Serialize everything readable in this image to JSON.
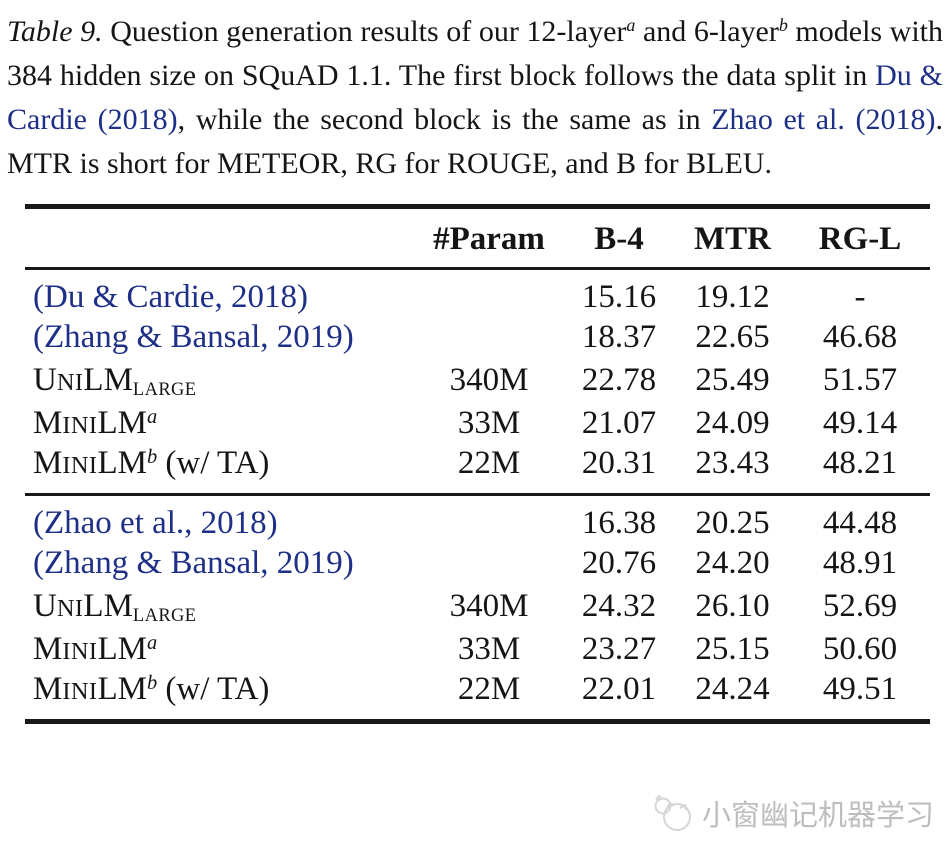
{
  "colors": {
    "text": "#151515",
    "link": "#1e2f87",
    "rule": "#191919",
    "watermark": "#bdbdbd",
    "background": "#ffffff"
  },
  "caption": {
    "segments": [
      {
        "t": "Table 9.",
        "s": "i"
      },
      {
        "t": "  Question generation results of our 12-layer"
      },
      {
        "t": "a",
        "s": "supi"
      },
      {
        "t": " and 6-layer"
      },
      {
        "t": "b",
        "s": "supi"
      },
      {
        "t": " models with 384 hidden size on SQuAD 1.1.  The first block follows the data split in "
      },
      {
        "t": "Du & Cardie (2018)",
        "s": "link"
      },
      {
        "t": ", while the second block is the same as in "
      },
      {
        "t": "Zhao et al. (2018)",
        "s": "link"
      },
      {
        "t": ".  MTR is short for METEOR, RG for ROUGE, and B for BLEU."
      }
    ]
  },
  "table": {
    "headers": [
      "",
      "#Param",
      "B-4",
      "MTR",
      "RG-L"
    ],
    "blocks": [
      {
        "rows": [
          {
            "label": [
              {
                "t": "(Du & Cardie, 2018)",
                "s": "cite"
              }
            ],
            "param": "",
            "b4": "15.16",
            "mtr": "19.12",
            "rgl": "-"
          },
          {
            "label": [
              {
                "t": "(Zhang & Bansal, 2019)",
                "s": "cite"
              }
            ],
            "param": "",
            "b4": "18.37",
            "mtr": "22.65",
            "rgl": "46.68"
          },
          {
            "label": [
              {
                "t": "U"
              },
              {
                "t": "NI",
                "s": "sc"
              },
              {
                "t": "LM"
              },
              {
                "t": "LARGE",
                "s": "sub"
              }
            ],
            "param": "340M",
            "b4": "22.78",
            "mtr": "25.49",
            "rgl": "51.57"
          },
          {
            "label": [
              {
                "t": "M"
              },
              {
                "t": "INI",
                "s": "sc"
              },
              {
                "t": "LM"
              },
              {
                "t": "a",
                "s": "sup"
              }
            ],
            "param": "33M",
            "b4": "21.07",
            "mtr": "24.09",
            "rgl": "49.14"
          },
          {
            "label": [
              {
                "t": "M"
              },
              {
                "t": "INI",
                "s": "sc"
              },
              {
                "t": "LM"
              },
              {
                "t": "b",
                "s": "sup"
              },
              {
                "t": " (w/ TA)"
              }
            ],
            "param": "22M",
            "b4": "20.31",
            "mtr": "23.43",
            "rgl": "48.21"
          }
        ]
      },
      {
        "rows": [
          {
            "label": [
              {
                "t": "(Zhao et al., 2018)",
                "s": "cite"
              }
            ],
            "param": "",
            "b4": "16.38",
            "mtr": "20.25",
            "rgl": "44.48"
          },
          {
            "label": [
              {
                "t": "(Zhang & Bansal, 2019)",
                "s": "cite"
              }
            ],
            "param": "",
            "b4": "20.76",
            "mtr": "24.20",
            "rgl": "48.91"
          },
          {
            "label": [
              {
                "t": "U"
              },
              {
                "t": "NI",
                "s": "sc"
              },
              {
                "t": "LM"
              },
              {
                "t": "LARGE",
                "s": "sub"
              }
            ],
            "param": "340M",
            "b4": "24.32",
            "mtr": "26.10",
            "rgl": "52.69"
          },
          {
            "label": [
              {
                "t": "M"
              },
              {
                "t": "INI",
                "s": "sc"
              },
              {
                "t": "LM"
              },
              {
                "t": "a",
                "s": "sup"
              }
            ],
            "param": "33M",
            "b4": "23.27",
            "mtr": "25.15",
            "rgl": "50.60"
          },
          {
            "label": [
              {
                "t": "M"
              },
              {
                "t": "INI",
                "s": "sc"
              },
              {
                "t": "LM"
              },
              {
                "t": "b",
                "s": "sup"
              },
              {
                "t": " (w/ TA)"
              }
            ],
            "param": "22M",
            "b4": "22.01",
            "mtr": "24.24",
            "rgl": "49.51"
          }
        ]
      }
    ]
  },
  "watermark": {
    "icon": "cat-logo-icon",
    "text": "小窗幽记机器学习"
  }
}
